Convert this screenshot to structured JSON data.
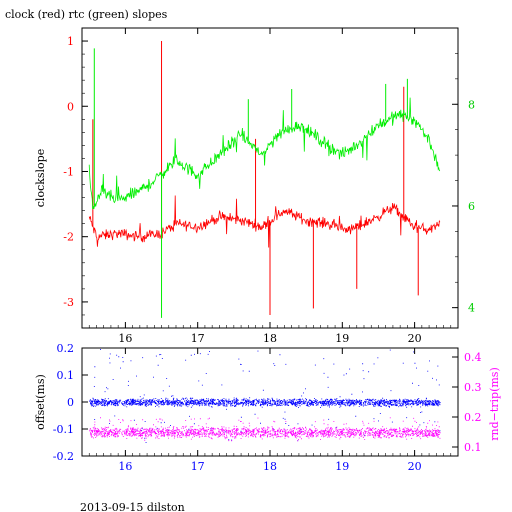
{
  "page": {
    "title": "clock (red) rtc (green) slopes",
    "footer": "2013-09-15 dilston"
  },
  "colors": {
    "clock": "#ff0000",
    "rtc": "#00ee00",
    "offset": "#0000ff",
    "rndtrip": "#ff00ff",
    "axis": "#000000",
    "background": "#ffffff"
  },
  "chart_data": [
    {
      "type": "line",
      "title": "clock (red) rtc (green) slopes",
      "ylabel": "clockslope",
      "xlim": [
        15.4,
        20.6
      ],
      "ylim": [
        -3.4,
        1.2
      ],
      "y2lim": [
        3.6,
        9.5
      ],
      "x_ticks": [
        16,
        17,
        18,
        19,
        20
      ],
      "y_ticks": [
        1,
        0,
        -1,
        -2,
        -3
      ],
      "y2_ticks": [
        4,
        6,
        8
      ],
      "x_range_data": [
        15.5,
        20.35
      ],
      "grid": false,
      "series": [
        {
          "name": "clock",
          "axis": "left",
          "trend_x": [
            15.5,
            15.6,
            15.9,
            16.2,
            16.5,
            16.7,
            17.0,
            17.3,
            17.6,
            17.9,
            18.2,
            18.5,
            18.8,
            19.1,
            19.4,
            19.7,
            20.0,
            20.2,
            20.35
          ],
          "trend_y": [
            -1.7,
            -2.0,
            -1.95,
            -2.0,
            -1.95,
            -1.8,
            -1.85,
            -1.7,
            -1.75,
            -1.85,
            -1.6,
            -1.75,
            -1.8,
            -1.9,
            -1.75,
            -1.55,
            -1.85,
            -1.9,
            -1.8
          ],
          "spikes": [
            {
              "x": 15.55,
              "y": -0.2
            },
            {
              "x": 16.5,
              "y": 1.0
            },
            {
              "x": 17.8,
              "y": -0.5
            },
            {
              "x": 18.0,
              "y": -3.2
            },
            {
              "x": 18.6,
              "y": -3.1
            },
            {
              "x": 19.2,
              "y": -2.8
            },
            {
              "x": 19.85,
              "y": 0.3
            },
            {
              "x": 20.05,
              "y": -2.9
            }
          ]
        },
        {
          "name": "rtc",
          "axis": "right",
          "trend_x": [
            15.5,
            15.55,
            15.65,
            15.9,
            16.2,
            16.4,
            16.7,
            17.0,
            17.3,
            17.6,
            17.9,
            18.1,
            18.4,
            18.7,
            19.0,
            19.2,
            19.5,
            19.8,
            20.0,
            20.2,
            20.35
          ],
          "trend_y": [
            6.7,
            5.9,
            6.3,
            6.1,
            6.3,
            6.5,
            6.9,
            6.6,
            7.0,
            7.4,
            7.0,
            7.4,
            7.6,
            7.3,
            7.0,
            7.2,
            7.6,
            7.8,
            7.7,
            7.3,
            6.7
          ],
          "spikes": [
            {
              "x": 15.57,
              "y": 9.1
            },
            {
              "x": 16.5,
              "y": 3.8
            },
            {
              "x": 17.7,
              "y": 8.1
            },
            {
              "x": 18.3,
              "y": 8.3
            },
            {
              "x": 19.6,
              "y": 8.4
            },
            {
              "x": 19.9,
              "y": 8.5
            }
          ]
        }
      ]
    },
    {
      "type": "scatter",
      "ylabel": "offset(ms)",
      "y2label": "rnd−trip(ms)",
      "xlim": [
        15.4,
        20.6
      ],
      "ylim": [
        -0.2,
        0.2
      ],
      "y2lim": [
        0.07,
        0.43
      ],
      "x_ticks": [
        16,
        17,
        18,
        19,
        20
      ],
      "y_ticks": [
        0.2,
        0.1,
        0,
        -0.1,
        -0.2
      ],
      "y2_ticks": [
        0.4,
        0.3,
        0.2,
        0.1
      ],
      "x_range_data": [
        15.5,
        20.35
      ],
      "grid": false,
      "series": [
        {
          "name": "offset",
          "axis": "left",
          "center": 0.0,
          "band_halfwidth": 0.02,
          "outlier_range": [
            -0.15,
            0.2
          ]
        },
        {
          "name": "rnd-trip",
          "axis": "right",
          "center": 0.15,
          "band_halfwidth": 0.025,
          "outlier_range": [
            0.12,
            0.2
          ]
        }
      ]
    }
  ]
}
